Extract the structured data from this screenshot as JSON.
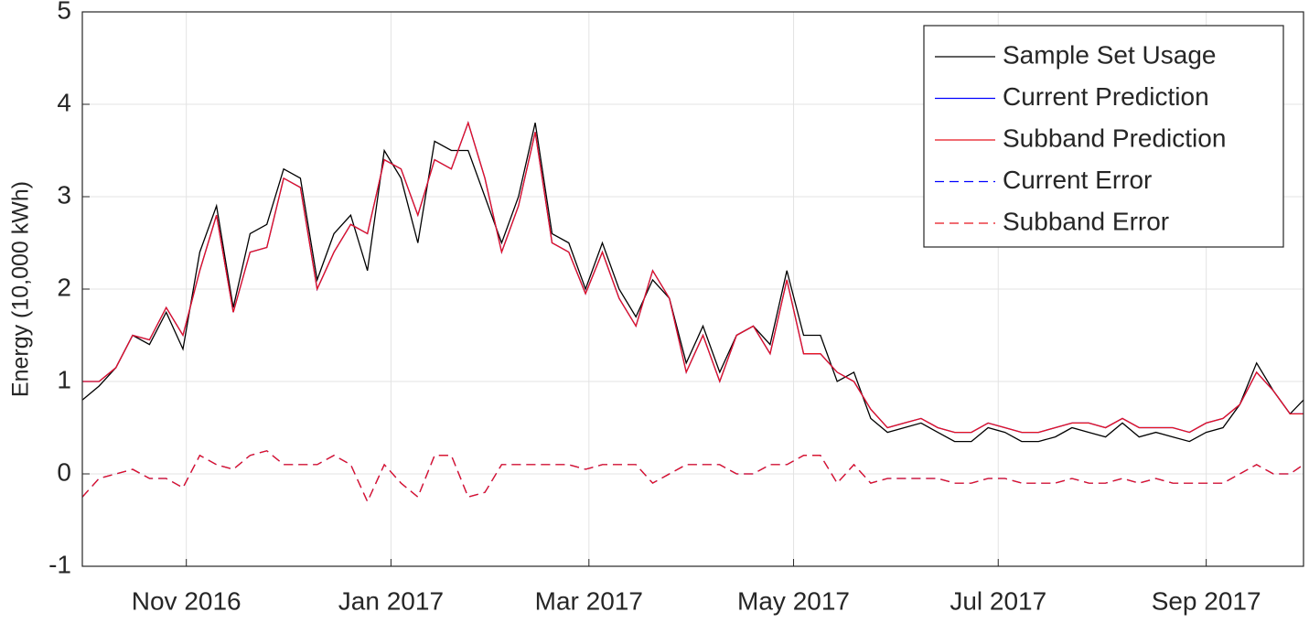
{
  "chart_data": {
    "type": "line",
    "ylabel": "Energy (10,000 kWh)",
    "xlim": [
      0,
      364
    ],
    "xticks": [
      {
        "value": 31,
        "label": "Nov 2016"
      },
      {
        "value": 92,
        "label": "Jan 2017"
      },
      {
        "value": 151,
        "label": "Mar 2017"
      },
      {
        "value": 212,
        "label": "May 2017"
      },
      {
        "value": 273,
        "label": "Jul 2017"
      },
      {
        "value": 335,
        "label": "Sep 2017"
      }
    ],
    "ylim": [
      -1,
      5
    ],
    "yticks": [
      -1,
      0,
      1,
      2,
      3,
      4,
      5
    ],
    "grid": true,
    "legend": "top-right",
    "x": [
      0,
      5,
      10,
      15,
      20,
      25,
      30,
      35,
      40,
      45,
      50,
      55,
      60,
      65,
      70,
      75,
      80,
      85,
      90,
      95,
      100,
      105,
      110,
      115,
      120,
      125,
      130,
      135,
      140,
      145,
      150,
      155,
      160,
      165,
      170,
      175,
      180,
      185,
      190,
      195,
      200,
      205,
      210,
      215,
      220,
      225,
      230,
      235,
      240,
      245,
      250,
      255,
      260,
      265,
      270,
      275,
      280,
      285,
      290,
      295,
      300,
      305,
      310,
      315,
      320,
      325,
      330,
      335,
      340,
      345,
      350,
      355,
      360,
      364
    ],
    "series": [
      {
        "name": "Sample Set Usage",
        "color": "#000000",
        "dash": false,
        "values": [
          0.8,
          0.95,
          1.15,
          1.5,
          1.4,
          1.75,
          1.35,
          2.4,
          2.9,
          1.8,
          2.6,
          2.7,
          3.3,
          3.2,
          2.1,
          2.6,
          2.8,
          2.2,
          3.5,
          3.2,
          2.5,
          3.6,
          3.5,
          3.5,
          3.0,
          2.5,
          3.0,
          3.8,
          2.6,
          2.5,
          2.0,
          2.5,
          2.0,
          1.7,
          2.1,
          1.9,
          1.2,
          1.6,
          1.1,
          1.5,
          1.6,
          1.4,
          2.2,
          1.5,
          1.5,
          1.0,
          1.1,
          0.6,
          0.45,
          0.5,
          0.55,
          0.45,
          0.35,
          0.35,
          0.5,
          0.45,
          0.35,
          0.35,
          0.4,
          0.5,
          0.45,
          0.4,
          0.55,
          0.4,
          0.45,
          0.4,
          0.35,
          0.45,
          0.5,
          0.75,
          1.2,
          0.9,
          0.65,
          0.8
        ]
      },
      {
        "name": "Current Prediction",
        "color": "#0000ff",
        "dash": false,
        "values": [
          1.0,
          1.0,
          1.15,
          1.5,
          1.45,
          1.8,
          1.5,
          2.2,
          2.8,
          1.75,
          2.4,
          2.45,
          3.2,
          3.1,
          2.0,
          2.4,
          2.7,
          2.6,
          3.4,
          3.3,
          2.8,
          3.4,
          3.3,
          3.8,
          3.2,
          2.4,
          2.9,
          3.7,
          2.5,
          2.4,
          1.95,
          2.4,
          1.9,
          1.6,
          2.2,
          1.9,
          1.1,
          1.5,
          1.0,
          1.5,
          1.6,
          1.3,
          2.1,
          1.3,
          1.3,
          1.1,
          1.0,
          0.7,
          0.5,
          0.55,
          0.6,
          0.5,
          0.45,
          0.45,
          0.55,
          0.5,
          0.45,
          0.45,
          0.5,
          0.55,
          0.55,
          0.5,
          0.6,
          0.5,
          0.5,
          0.5,
          0.45,
          0.55,
          0.6,
          0.75,
          1.1,
          0.9,
          0.65,
          0.65
        ]
      },
      {
        "name": "Subband Prediction",
        "color": "#e8141e",
        "dash": false,
        "values": [
          1.0,
          1.0,
          1.15,
          1.5,
          1.45,
          1.8,
          1.5,
          2.2,
          2.8,
          1.75,
          2.4,
          2.45,
          3.2,
          3.1,
          2.0,
          2.4,
          2.7,
          2.6,
          3.4,
          3.3,
          2.8,
          3.4,
          3.3,
          3.8,
          3.2,
          2.4,
          2.9,
          3.7,
          2.5,
          2.4,
          1.95,
          2.4,
          1.9,
          1.6,
          2.2,
          1.9,
          1.1,
          1.5,
          1.0,
          1.5,
          1.6,
          1.3,
          2.1,
          1.3,
          1.3,
          1.1,
          1.0,
          0.7,
          0.5,
          0.55,
          0.6,
          0.5,
          0.45,
          0.45,
          0.55,
          0.5,
          0.45,
          0.45,
          0.5,
          0.55,
          0.55,
          0.5,
          0.6,
          0.5,
          0.5,
          0.5,
          0.45,
          0.55,
          0.6,
          0.75,
          1.1,
          0.9,
          0.65,
          0.65
        ]
      },
      {
        "name": "Current Error",
        "color": "#0000ff",
        "dash": true,
        "values": [
          -0.25,
          -0.05,
          0,
          0.05,
          -0.05,
          -0.05,
          -0.15,
          0.2,
          0.1,
          0.05,
          0.2,
          0.25,
          0.1,
          0.1,
          0.1,
          0.2,
          0.1,
          -0.3,
          0.1,
          -0.1,
          -0.25,
          0.2,
          0.2,
          -0.25,
          -0.2,
          0.1,
          0.1,
          0.1,
          0.1,
          0.1,
          0.05,
          0.1,
          0.1,
          0.1,
          -0.1,
          0,
          0.1,
          0.1,
          0.1,
          0,
          0,
          0.1,
          0.1,
          0.2,
          0.2,
          -0.1,
          0.1,
          -0.1,
          -0.05,
          -0.05,
          -0.05,
          -0.05,
          -0.1,
          -0.1,
          -0.05,
          -0.05,
          -0.1,
          -0.1,
          -0.1,
          -0.05,
          -0.1,
          -0.1,
          -0.05,
          -0.1,
          -0.05,
          -0.1,
          -0.1,
          -0.1,
          -0.1,
          0,
          0.1,
          0,
          0,
          0.1
        ]
      },
      {
        "name": "Subband Error",
        "color": "#e8141e",
        "dash": true,
        "values": [
          -0.25,
          -0.05,
          0,
          0.05,
          -0.05,
          -0.05,
          -0.15,
          0.2,
          0.1,
          0.05,
          0.2,
          0.25,
          0.1,
          0.1,
          0.1,
          0.2,
          0.1,
          -0.3,
          0.1,
          -0.1,
          -0.25,
          0.2,
          0.2,
          -0.25,
          -0.2,
          0.1,
          0.1,
          0.1,
          0.1,
          0.1,
          0.05,
          0.1,
          0.1,
          0.1,
          -0.1,
          0,
          0.1,
          0.1,
          0.1,
          0,
          0,
          0.1,
          0.1,
          0.2,
          0.2,
          -0.1,
          0.1,
          -0.1,
          -0.05,
          -0.05,
          -0.05,
          -0.05,
          -0.1,
          -0.1,
          -0.05,
          -0.05,
          -0.1,
          -0.1,
          -0.1,
          -0.05,
          -0.1,
          -0.1,
          -0.05,
          -0.1,
          -0.05,
          -0.1,
          -0.1,
          -0.1,
          -0.1,
          0,
          0.1,
          0,
          0,
          0.1
        ]
      }
    ]
  }
}
